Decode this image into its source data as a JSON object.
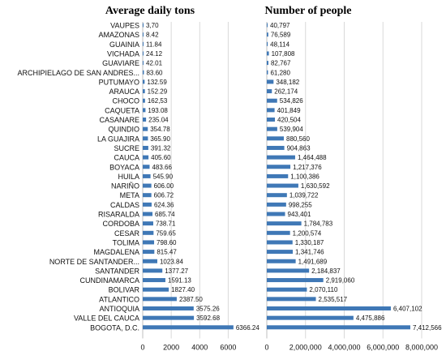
{
  "chart_data": [
    {
      "type": "bar",
      "orientation": "horizontal",
      "title": "Average daily tons",
      "categories": [
        "VAUPES",
        "AMAZONAS",
        "GUAINIA",
        "VICHADA",
        "GUAVIARE",
        "ARCHIPIELAGO DE SAN ANDRES...",
        "PUTUMAYO",
        "ARAUCA",
        "CHOCO",
        "CAQUETA",
        "CASANARE",
        "QUINDIO",
        "LA GUAJIRA",
        "SUCRE",
        "CAUCA",
        "BOYACA",
        "HUILA",
        "NARIÑO",
        "META",
        "CALDAS",
        "RISARALDA",
        "CORDOBA",
        "CESAR",
        "TOLIMA",
        "MAGDALENA",
        "NORTE DE SANTANDER...",
        "SANTANDER",
        "CUNDINAMARCA",
        "BOLIVAR",
        "ATLANTICO",
        "ANTIOQUIA",
        "VALLE DEL CAUCA",
        "BOGOTA, D.C."
      ],
      "values": [
        3.7,
        8.42,
        11.84,
        24.12,
        42.01,
        83.6,
        132.59,
        152.29,
        162.53,
        193.08,
        235.04,
        354.78,
        365.9,
        391.32,
        405.6,
        483.66,
        545.9,
        606.0,
        606.72,
        624.36,
        685.74,
        738.71,
        759.65,
        798.6,
        815.47,
        1023.84,
        1377.27,
        1591.13,
        1827.4,
        2387.5,
        3575.26,
        3592.68,
        6366.24
      ],
      "labels": [
        "3,70",
        "8.42",
        "11.84",
        "24.12",
        "42.01",
        "83.60",
        "132.59",
        "152.29",
        "162,53",
        "193.08",
        "235.04",
        "354.78",
        "365.90",
        "391.32",
        "405.60",
        "483.66",
        "545.90",
        "606.00",
        "606.72",
        "624.36",
        "685.74",
        "738.71",
        "759.65",
        "798.60",
        "815.47",
        "1023.84",
        "1377.27",
        "1591.13",
        "1827.40",
        "2387.50",
        "3575.26",
        "3592.68",
        "6366.24"
      ],
      "xlim": [
        0,
        7000
      ],
      "xticks": [
        "0",
        "2000",
        "4000",
        "6000"
      ],
      "xtick_values": [
        0,
        2000,
        4000,
        6000
      ],
      "grid": true,
      "bar_color": "#3f78b6"
    },
    {
      "type": "bar",
      "orientation": "horizontal",
      "title": "Number of people",
      "categories": [
        "VAUPES",
        "AMAZONAS",
        "GUAINIA",
        "VICHADA",
        "GUAVIARE",
        "ARCHIPIELAGO DE SAN ANDRES...",
        "PUTUMAYO",
        "ARAUCA",
        "CHOCO",
        "CAQUETA",
        "CASANARE",
        "QUINDIO",
        "LA GUAJIRA",
        "SUCRE",
        "CAUCA",
        "BOYACA",
        "HUILA",
        "NARIÑO",
        "META",
        "CALDAS",
        "RISARALDA",
        "CORDOBA",
        "CESAR",
        "TOLIMA",
        "MAGDALENA",
        "NORTE DE SANTANDER...",
        "SANTANDER",
        "CUNDINAMARCA",
        "BOLIVAR",
        "ATLANTICO",
        "ANTIOQUIA",
        "VALLE DEL CAUCA",
        "BOGOTA, D.C."
      ],
      "values": [
        40797,
        76589,
        48114,
        107808,
        82767,
        61280,
        348182,
        262174,
        534826,
        401849,
        420504,
        539904,
        880560,
        904863,
        1464488,
        1217376,
        1100386,
        1630592,
        1039722,
        998255,
        943401,
        1784783,
        1200574,
        1330187,
        1341746,
        1491689,
        2184837,
        2919060,
        2070110,
        2535517,
        6407102,
        4475886,
        7412566
      ],
      "labels": [
        "40,797",
        "76,589",
        "48,114",
        "107,808",
        "82,767",
        "61,280",
        "348,182",
        "262,174",
        "534,826",
        "401,849",
        "420,504",
        "539,904",
        "880,560",
        "904,863",
        "1,464,488",
        "1,217,376",
        "1,100,386",
        "1,630,592",
        "1,039,722",
        "998,255",
        "943,401",
        "1,784,783",
        "1,200,574",
        "1,330,187",
        "1,341,746",
        "1,491,689",
        "2,184,837",
        "2,919,060",
        "2,070,110",
        "2,535,517",
        "6,407,102",
        "4,475,886",
        "7,412,566"
      ],
      "xlim": [
        0,
        8000000
      ],
      "xticks": [
        "0",
        "2,000,000",
        "4,000,000",
        "6,000,000",
        "8,000,000"
      ],
      "xtick_values": [
        0,
        2000000,
        4000000,
        6000000,
        8000000
      ],
      "grid": true,
      "bar_color": "#3f78b6"
    }
  ]
}
